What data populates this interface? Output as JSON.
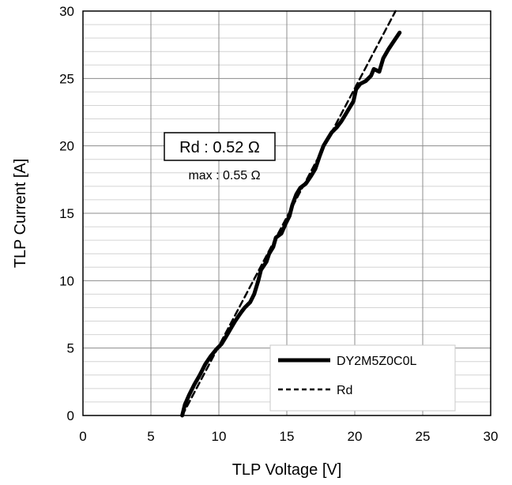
{
  "chart_data": {
    "type": "line",
    "xlabel": "TLP Voltage [V]",
    "ylabel": "TLP Current [A]",
    "xlim": [
      0,
      30
    ],
    "ylim": [
      0,
      30
    ],
    "xticks": [
      0,
      5,
      10,
      15,
      20,
      25,
      30
    ],
    "yticks": [
      0,
      5,
      10,
      15,
      20,
      25,
      30
    ],
    "grid": {
      "major": true,
      "minor_y": true,
      "minor_y_step": 1
    },
    "legend": {
      "position": "bottom-right",
      "entries": [
        {
          "label": "DY2M5Z0C0L",
          "style": "solid"
        },
        {
          "label": "Rd",
          "style": "dashed"
        }
      ]
    },
    "annotations": {
      "rd": "Rd : 0.52 Ω",
      "max": "max : 0.55 Ω"
    },
    "series": [
      {
        "name": "DY2M5Z0C0L",
        "style": "solid",
        "color": "#000000",
        "x": [
          7.3,
          7.5,
          7.8,
          8.2,
          8.6,
          9.0,
          9.4,
          9.8,
          10.2,
          10.5,
          10.9,
          11.2,
          11.6,
          11.9,
          12.3,
          12.6,
          12.9,
          13.1,
          13.5,
          13.7,
          14.0,
          14.2,
          14.6,
          14.9,
          15.2,
          15.4,
          15.7,
          16.0,
          16.4,
          16.8,
          17.1,
          17.4,
          17.7,
          18.0,
          18.3,
          18.7,
          19.0,
          19.3,
          19.6,
          19.9,
          20.1,
          20.4,
          20.8,
          21.2,
          21.4,
          21.8,
          22.1,
          22.5,
          22.9,
          23.3
        ],
        "y": [
          0.0,
          0.8,
          1.5,
          2.3,
          3.0,
          3.8,
          4.4,
          4.9,
          5.3,
          5.8,
          6.5,
          7.0,
          7.6,
          8.0,
          8.4,
          9.0,
          10.0,
          10.8,
          11.4,
          12.0,
          12.5,
          13.2,
          13.5,
          14.2,
          14.8,
          15.6,
          16.4,
          16.9,
          17.2,
          17.8,
          18.3,
          19.2,
          20.0,
          20.5,
          21.0,
          21.4,
          21.8,
          22.3,
          22.8,
          23.3,
          24.2,
          24.6,
          24.8,
          25.2,
          25.7,
          25.5,
          26.5,
          27.2,
          27.8,
          28.4
        ]
      },
      {
        "name": "Rd",
        "style": "dashed",
        "color": "#000000",
        "x": [
          7.3,
          23.0
        ],
        "y": [
          0.0,
          30.0
        ]
      }
    ]
  }
}
